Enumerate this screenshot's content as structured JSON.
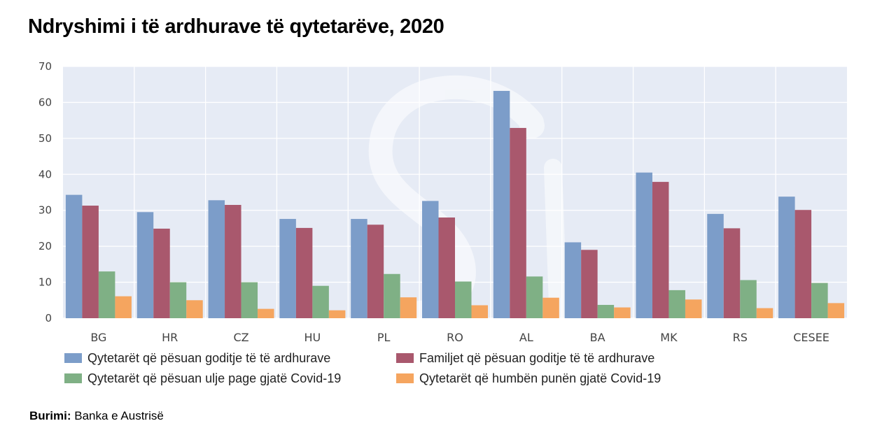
{
  "title": "Ndryshimi i të ardhurave të qytetarëve, 2020",
  "source": {
    "label": "Burimi:",
    "value": "Banka e Austrisë"
  },
  "chart_data": {
    "type": "bar",
    "categories": [
      "BG",
      "HR",
      "CZ",
      "HU",
      "PL",
      "RO",
      "AL",
      "BA",
      "MK",
      "RS",
      "CESEE"
    ],
    "series": [
      {
        "name": "Qytetarët që pësuan goditje të të ardhurave",
        "color": "#7c9dc9",
        "values": [
          34.3,
          29.5,
          32.8,
          27.6,
          27.6,
          32.6,
          63.2,
          21.1,
          40.5,
          29.0,
          33.8
        ]
      },
      {
        "name": "Familjet që pësuan goditje të të ardhurave",
        "color": "#a9586d",
        "values": [
          31.3,
          24.9,
          31.5,
          25.1,
          26.0,
          28.0,
          52.9,
          19.0,
          37.9,
          25.0,
          30.1
        ]
      },
      {
        "name": "Qytetarët që pësuan ulje page gjatë Covid-19",
        "color": "#7fb085",
        "values": [
          13.0,
          10.0,
          10.0,
          9.0,
          12.3,
          10.2,
          11.6,
          3.7,
          7.8,
          10.6,
          9.8
        ]
      },
      {
        "name": "Qytetarët që humbën punën gjatë Covid-19",
        "color": "#f5a55f",
        "values": [
          6.1,
          5.0,
          2.6,
          2.2,
          5.8,
          3.6,
          5.7,
          3.0,
          5.2,
          2.8,
          4.2
        ]
      }
    ],
    "yticks": [
      0,
      10,
      20,
      30,
      40,
      50,
      60,
      70
    ],
    "ylim": [
      0,
      70
    ],
    "grid": true,
    "legend": "bottom"
  }
}
